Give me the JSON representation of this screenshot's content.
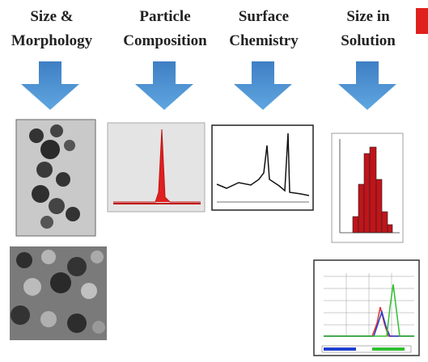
{
  "columns": [
    {
      "title_lines": [
        "Size &",
        "Morphology"
      ]
    },
    {
      "title_lines": [
        "Particle",
        "Composition"
      ]
    },
    {
      "title_lines": [
        "Surface",
        "Chemistry"
      ]
    },
    {
      "title_lines": [
        "Size in",
        "Solution"
      ]
    }
  ]
}
